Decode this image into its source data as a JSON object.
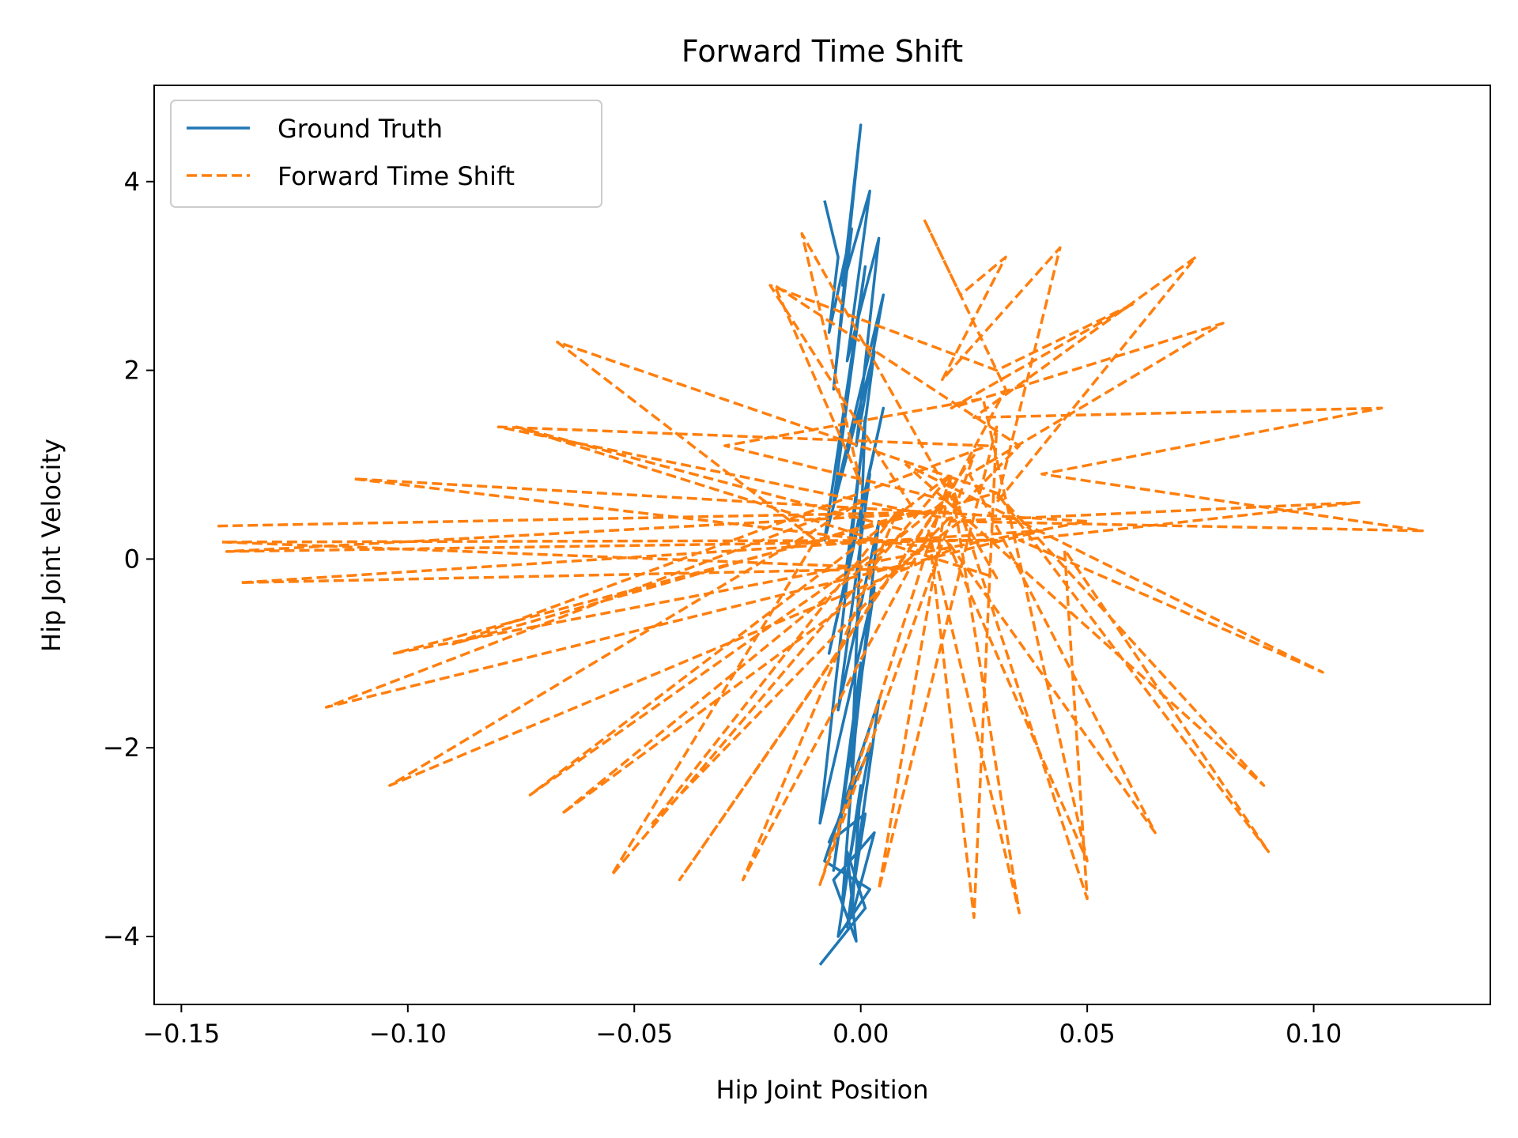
{
  "chart_data": {
    "type": "line",
    "title": "Forward Time Shift",
    "xlabel": "Hip Joint Position",
    "ylabel": "Hip Joint Velocity",
    "xlim": [
      -0.156,
      0.139
    ],
    "ylim": [
      -4.72,
      5.02
    ],
    "xticks": [
      -0.15,
      -0.1,
      -0.05,
      0.0,
      0.05,
      0.1
    ],
    "xtick_labels": [
      "−0.15",
      "−0.10",
      "−0.05",
      "0.00",
      "0.05",
      "0.10"
    ],
    "yticks": [
      -4,
      -2,
      0,
      2,
      4
    ],
    "ytick_labels": [
      "−4",
      "−2",
      "0",
      "2",
      "4"
    ],
    "grid": false,
    "legend_position": "top-left",
    "series": [
      {
        "name": "Ground Truth",
        "color": "#1f77b4",
        "style": "solid",
        "x": [
          -0.008,
          -0.005,
          -0.007,
          -0.002,
          -0.006,
          0.0,
          -0.004,
          0.002,
          -0.003,
          0.004,
          -0.001,
          0.005,
          -0.006,
          0.001,
          -0.008,
          0.003,
          -0.004,
          0.005,
          -0.007,
          0.002,
          -0.005,
          0.004,
          -0.002,
          0.001,
          -0.009,
          0.003,
          -0.006,
          0.0,
          -0.004,
          0.002,
          -0.007,
          0.001,
          -0.003,
          0.004,
          -0.008,
          0.002,
          -0.005,
          0.0,
          -0.002,
          0.003,
          -0.006,
          -0.001,
          -0.003,
          0.001,
          -0.009
        ],
        "y": [
          3.8,
          3.2,
          2.4,
          3.5,
          1.8,
          4.6,
          2.9,
          3.9,
          2.1,
          3.4,
          1.2,
          2.8,
          0.6,
          3.1,
          0.2,
          2.2,
          -0.4,
          1.6,
          -1.0,
          0.9,
          -1.6,
          0.4,
          -2.2,
          1.5,
          -2.8,
          -0.3,
          -3.3,
          -1.1,
          -3.6,
          -2.0,
          -3.0,
          -2.7,
          -3.9,
          -1.5,
          -3.2,
          -3.5,
          -4.0,
          -2.4,
          -3.8,
          -2.9,
          -3.4,
          -4.05,
          -3.1,
          -3.7,
          -4.3
        ]
      },
      {
        "name": "Forward Time Shift",
        "color": "#ff7f0e",
        "style": "dashed",
        "x": [
          -0.142,
          0.02,
          -0.14,
          0.03,
          -0.141,
          0.01,
          -0.137,
          0.04,
          -0.118,
          0.0,
          -0.104,
          0.02,
          -0.112,
          0.05,
          -0.103,
          0.03,
          -0.067,
          -0.01,
          -0.055,
          0.02,
          -0.073,
          0.01,
          -0.076,
          0.03,
          -0.013,
          0.0,
          -0.019,
          0.035,
          -0.046,
          0.008,
          -0.026,
          0.032,
          0.014,
          0.022,
          0.032,
          0.018,
          0.044,
          0.03,
          0.074,
          0.025,
          0.115,
          0.04,
          0.124,
          0.02,
          0.11,
          0.035,
          0.102,
          0.01,
          0.089,
          0.03,
          0.09,
          0.045,
          0.05,
          0.02,
          0.035,
          0.015,
          0.025,
          0.03,
          0.004,
          0.02,
          -0.009,
          0.025,
          -0.04,
          0.018,
          -0.066,
          0.022,
          -0.08,
          0.028,
          -0.09,
          0.012,
          -0.02,
          0.03,
          0.06,
          0.02,
          0.08,
          0.024,
          0.065,
          0.019,
          0.05,
          0.027,
          -0.03,
          0.021
        ],
        "y": [
          0.35,
          0.5,
          0.08,
          0.2,
          0.18,
          -0.1,
          -0.25,
          0.3,
          -1.57,
          0.6,
          -2.4,
          0.1,
          0.85,
          0.4,
          -1.0,
          0.7,
          2.3,
          0.2,
          -3.35,
          0.9,
          -2.5,
          0.3,
          1.4,
          -0.2,
          3.45,
          0.8,
          2.9,
          1.2,
          -2.8,
          0.5,
          -3.4,
          1.8,
          3.6,
          2.8,
          3.2,
          1.9,
          3.3,
          0.6,
          3.2,
          1.5,
          1.6,
          0.9,
          0.3,
          0.4,
          0.6,
          0.2,
          -1.2,
          1.0,
          -2.4,
          0.7,
          -3.1,
          0.1,
          -3.6,
          0.8,
          -3.75,
          0.3,
          -3.8,
          1.4,
          -3.5,
          0.9,
          -3.45,
          1.1,
          -3.4,
          0.6,
          -2.7,
          0.4,
          1.4,
          1.2,
          -0.9,
          0.5,
          2.9,
          2.0,
          2.7,
          1.6,
          2.5,
          0.9,
          -2.9,
          0.2,
          -3.2,
          1.7,
          1.2,
          0.6
        ]
      }
    ]
  }
}
